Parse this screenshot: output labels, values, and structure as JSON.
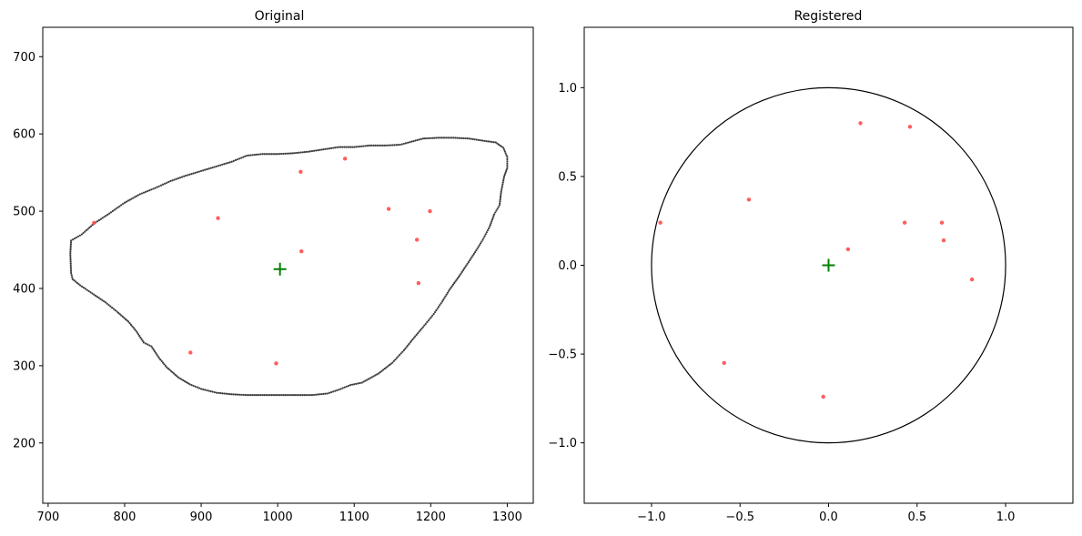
{
  "chart_data": [
    {
      "type": "scatter",
      "title": "Original",
      "xlabel": "",
      "ylabel": "",
      "xlim": [
        693,
        1334
      ],
      "ylim": [
        122,
        738
      ],
      "xticks": [
        700,
        800,
        900,
        1000,
        1100,
        1200,
        1300
      ],
      "yticks": [
        200,
        300,
        400,
        500,
        600,
        700
      ],
      "grid": false,
      "outline_color": "#1a1a1a",
      "point_color": "#ff4d4d",
      "centroid_color": "#008000",
      "outline": [
        [
          730,
          420
        ],
        [
          729,
          445
        ],
        [
          730,
          462
        ],
        [
          744,
          470
        ],
        [
          760,
          484
        ],
        [
          780,
          497
        ],
        [
          800,
          511
        ],
        [
          820,
          522
        ],
        [
          840,
          530
        ],
        [
          860,
          539
        ],
        [
          880,
          546
        ],
        [
          900,
          552
        ],
        [
          920,
          558
        ],
        [
          940,
          564
        ],
        [
          960,
          572
        ],
        [
          980,
          574
        ],
        [
          1000,
          574
        ],
        [
          1020,
          575
        ],
        [
          1040,
          577
        ],
        [
          1060,
          580
        ],
        [
          1080,
          583
        ],
        [
          1100,
          583
        ],
        [
          1120,
          585
        ],
        [
          1140,
          585
        ],
        [
          1160,
          586
        ],
        [
          1175,
          590
        ],
        [
          1190,
          594
        ],
        [
          1210,
          595
        ],
        [
          1230,
          595
        ],
        [
          1250,
          594
        ],
        [
          1270,
          591
        ],
        [
          1285,
          589
        ],
        [
          1295,
          582
        ],
        [
          1300,
          570
        ],
        [
          1300,
          556
        ],
        [
          1296,
          545
        ],
        [
          1292,
          525
        ],
        [
          1290,
          508
        ],
        [
          1283,
          496
        ],
        [
          1277,
          480
        ],
        [
          1268,
          463
        ],
        [
          1258,
          447
        ],
        [
          1248,
          432
        ],
        [
          1238,
          417
        ],
        [
          1225,
          399
        ],
        [
          1215,
          383
        ],
        [
          1204,
          367
        ],
        [
          1190,
          350
        ],
        [
          1178,
          336
        ],
        [
          1165,
          320
        ],
        [
          1150,
          304
        ],
        [
          1132,
          290
        ],
        [
          1110,
          278
        ],
        [
          1095,
          275
        ],
        [
          1080,
          269
        ],
        [
          1065,
          264
        ],
        [
          1045,
          262
        ],
        [
          1020,
          262
        ],
        [
          1000,
          262
        ],
        [
          980,
          262
        ],
        [
          960,
          262
        ],
        [
          940,
          263
        ],
        [
          920,
          265
        ],
        [
          900,
          270
        ],
        [
          885,
          276
        ],
        [
          870,
          285
        ],
        [
          855,
          298
        ],
        [
          845,
          310
        ],
        [
          835,
          325
        ],
        [
          825,
          330
        ],
        [
          815,
          345
        ],
        [
          805,
          357
        ],
        [
          790,
          370
        ],
        [
          775,
          382
        ],
        [
          760,
          392
        ],
        [
          742,
          404
        ],
        [
          732,
          412
        ],
        [
          730,
          420
        ]
      ],
      "points": [
        [
          760,
          485
        ],
        [
          922,
          491
        ],
        [
          1030,
          551
        ],
        [
          1088,
          568
        ],
        [
          1031,
          448
        ],
        [
          1145,
          503
        ],
        [
          1199,
          500
        ],
        [
          1182,
          463
        ],
        [
          1184,
          407
        ],
        [
          886,
          317
        ],
        [
          998,
          303
        ]
      ],
      "centroid": [
        1003,
        425
      ]
    },
    {
      "type": "scatter",
      "title": "Registered",
      "xlabel": "",
      "ylabel": "",
      "xlim": [
        -1.38,
        1.38
      ],
      "ylim": [
        -1.34,
        1.34
      ],
      "xticks": [
        -1.0,
        -0.5,
        0.0,
        0.5,
        1.0
      ],
      "yticks": [
        -1.0,
        -0.5,
        0.0,
        0.5,
        1.0
      ],
      "xticklabels": [
        "−1.0",
        "−0.5",
        "0.0",
        "0.5",
        "1.0"
      ],
      "yticklabels": [
        "−1.0",
        "−0.5",
        "0.0",
        "0.5",
        "1.0"
      ],
      "grid": false,
      "circle_radius": 1.0,
      "circle_color": "#000000",
      "point_color": "#ff4d4d",
      "centroid_color": "#008000",
      "points": [
        [
          -0.95,
          0.24
        ],
        [
          -0.45,
          0.37
        ],
        [
          0.18,
          0.8
        ],
        [
          0.46,
          0.78
        ],
        [
          0.43,
          0.24
        ],
        [
          0.64,
          0.24
        ],
        [
          0.65,
          0.14
        ],
        [
          0.11,
          0.09
        ],
        [
          0.81,
          -0.08
        ],
        [
          -0.59,
          -0.55
        ],
        [
          -0.03,
          -0.74
        ]
      ],
      "centroid": [
        0.0,
        0.0
      ]
    }
  ]
}
